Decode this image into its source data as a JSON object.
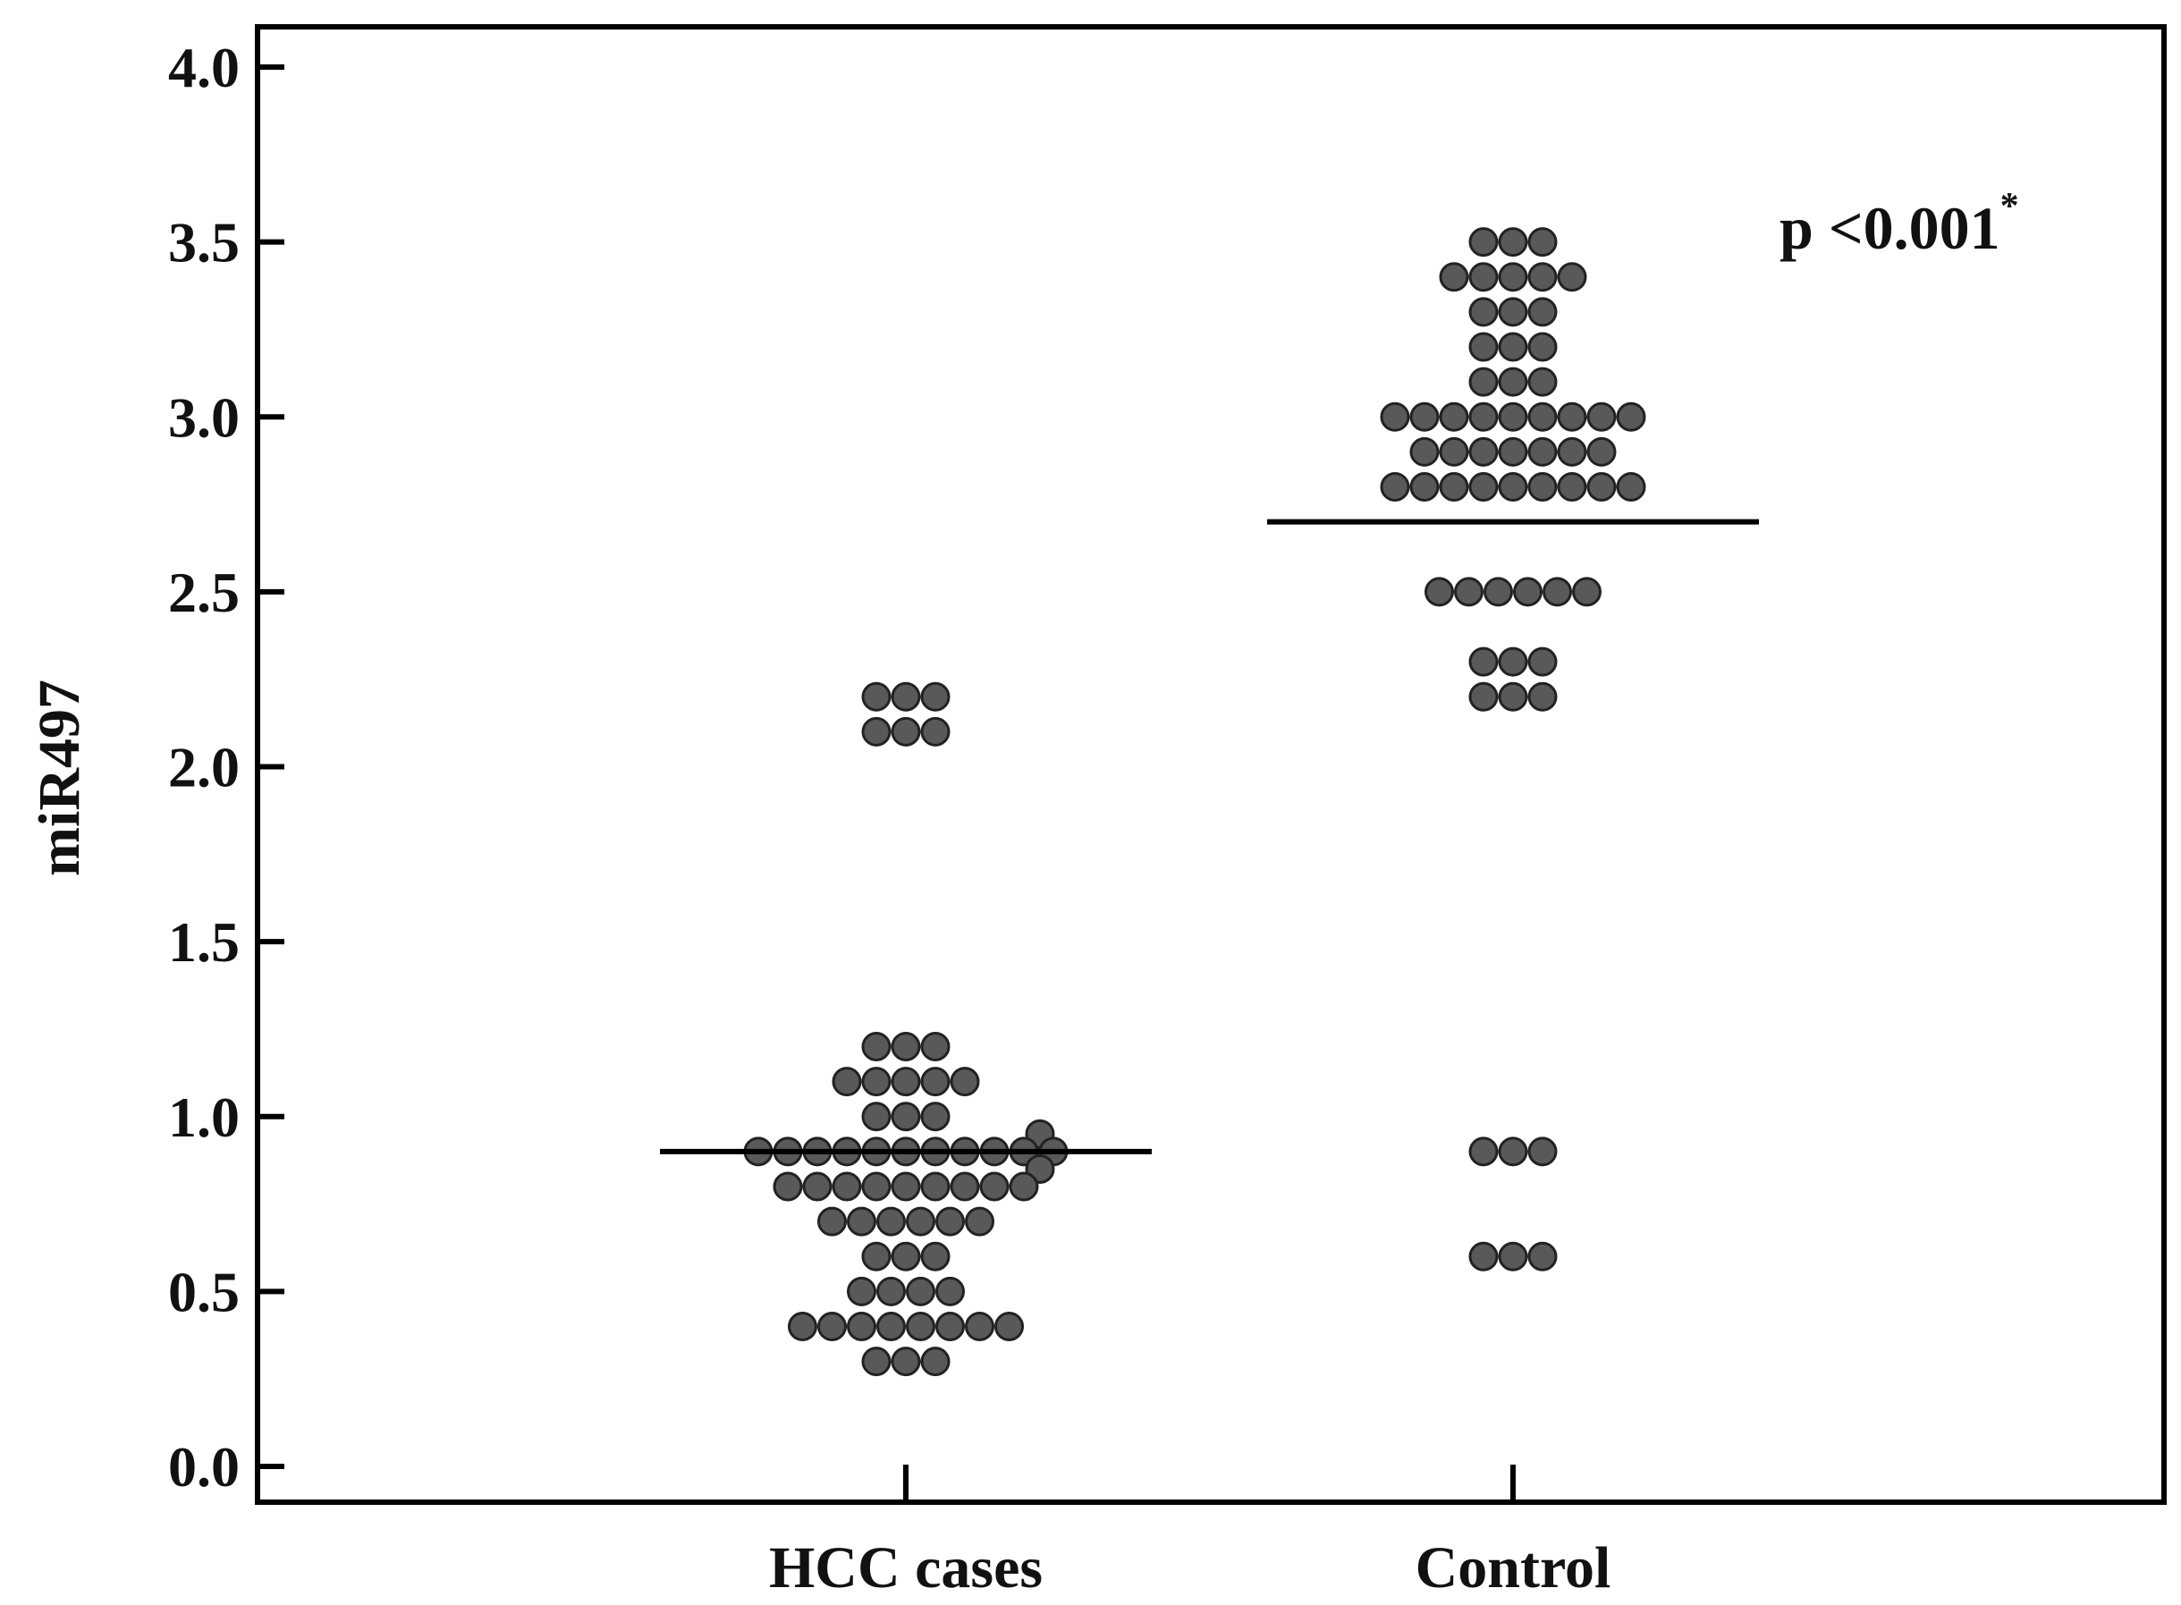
{
  "chart_data": {
    "type": "scatter",
    "subtype": "dot plot with median lines",
    "title": "",
    "xlabel": "",
    "ylabel": "miR497",
    "ylim": [
      0.0,
      4.0
    ],
    "yticks": [
      "0.0",
      "0.5",
      "1.0",
      "1.5",
      "2.0",
      "2.5",
      "3.0",
      "3.5",
      "4.0"
    ],
    "categories": [
      "HCC cases",
      "Control"
    ],
    "annotation": {
      "text": "p <0.001",
      "superscript": "*",
      "placement": "top-right"
    },
    "series": [
      {
        "name": "HCC cases",
        "median": 0.9,
        "rows": [
          {
            "y": 2.2,
            "count": 3
          },
          {
            "y": 2.1,
            "count": 3
          },
          {
            "y": 1.2,
            "count": 3
          },
          {
            "y": 1.1,
            "count": 5
          },
          {
            "y": 1.0,
            "count": 3
          },
          {
            "y": 0.95,
            "count": 1
          },
          {
            "y": 0.9,
            "count": 11
          },
          {
            "y": 0.85,
            "count": 1
          },
          {
            "y": 0.8,
            "count": 9
          },
          {
            "y": 0.7,
            "count": 6
          },
          {
            "y": 0.6,
            "count": 3
          },
          {
            "y": 0.5,
            "count": 4
          },
          {
            "y": 0.4,
            "count": 8
          },
          {
            "y": 0.3,
            "count": 3
          }
        ]
      },
      {
        "name": "Control",
        "median": 2.7,
        "rows": [
          {
            "y": 3.5,
            "count": 3
          },
          {
            "y": 3.4,
            "count": 5
          },
          {
            "y": 3.3,
            "count": 3
          },
          {
            "y": 3.2,
            "count": 3
          },
          {
            "y": 3.1,
            "count": 3
          },
          {
            "y": 3.0,
            "count": 9
          },
          {
            "y": 2.9,
            "count": 7
          },
          {
            "y": 2.8,
            "count": 9
          },
          {
            "y": 2.5,
            "count": 6
          },
          {
            "y": 2.3,
            "count": 3
          },
          {
            "y": 2.2,
            "count": 3
          },
          {
            "y": 0.9,
            "count": 3
          },
          {
            "y": 0.6,
            "count": 3
          }
        ]
      }
    ],
    "colors": {
      "marker_fill": "#595959",
      "marker_stroke": "#222222",
      "axis": "#000000",
      "median_line": "#000000"
    }
  }
}
